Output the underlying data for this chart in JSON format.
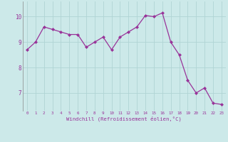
{
  "x": [
    0,
    1,
    2,
    3,
    4,
    5,
    6,
    7,
    8,
    9,
    10,
    11,
    12,
    13,
    14,
    15,
    16,
    17,
    18,
    19,
    20,
    21,
    22,
    23
  ],
  "y": [
    8.7,
    9.0,
    9.6,
    9.5,
    9.4,
    9.3,
    9.3,
    8.8,
    9.0,
    9.2,
    8.7,
    9.2,
    9.4,
    9.6,
    10.05,
    10.0,
    10.15,
    9.0,
    8.5,
    7.5,
    7.0,
    7.2,
    6.6,
    6.55
  ],
  "line_color": "#993399",
  "marker": "D",
  "marker_size": 2.0,
  "line_width": 0.9,
  "bg_color": "#cce9e9",
  "grid_color": "#b0d4d4",
  "xlabel": "Windchill (Refroidissement éolien,°C)",
  "xlabel_color": "#993399",
  "tick_color": "#993399",
  "yticks": [
    7,
    8,
    9,
    10
  ],
  "xticks": [
    0,
    1,
    2,
    3,
    4,
    5,
    6,
    7,
    8,
    9,
    10,
    11,
    12,
    13,
    14,
    15,
    16,
    17,
    18,
    19,
    20,
    21,
    22,
    23
  ],
  "xlim": [
    -0.5,
    23.5
  ],
  "ylim": [
    6.3,
    10.6
  ]
}
